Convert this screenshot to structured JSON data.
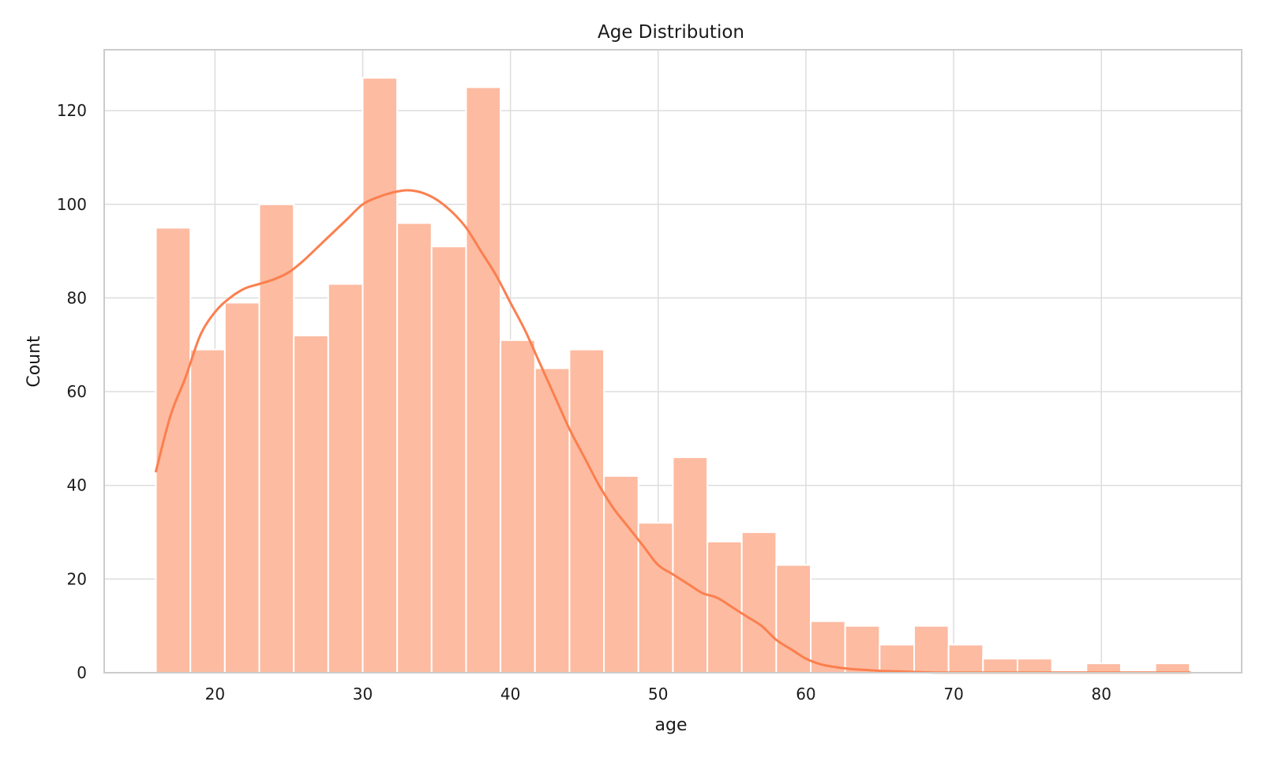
{
  "chart_data": {
    "type": "bar",
    "title": "Age Distribution",
    "xlabel": "age",
    "ylabel": "Count",
    "xlim": [
      12.5,
      89.5
    ],
    "ylim": [
      0,
      133
    ],
    "bin_start": 16,
    "bin_width": 2.333,
    "values": [
      95,
      69,
      79,
      100,
      72,
      83,
      127,
      96,
      91,
      125,
      71,
      65,
      69,
      42,
      32,
      46,
      28,
      30,
      23,
      11,
      10,
      6,
      10,
      6,
      3,
      3,
      0,
      2,
      0,
      2
    ],
    "kde": {
      "name": "kde",
      "x": [
        16,
        17,
        18,
        19,
        20,
        21,
        22,
        23,
        24,
        25,
        26,
        27,
        28,
        29,
        30,
        31,
        32,
        33,
        34,
        35,
        36,
        37,
        38,
        39,
        40,
        41,
        42,
        43,
        44,
        45,
        46,
        47,
        48,
        49,
        50,
        51,
        52,
        53,
        54,
        55,
        56,
        57,
        58,
        59,
        60,
        61,
        62,
        63,
        64,
        65,
        66,
        67,
        68,
        69,
        70,
        71,
        72,
        73,
        74,
        75,
        76,
        77,
        78,
        79,
        80,
        82,
        84,
        86
      ],
      "y": [
        43,
        55,
        63,
        72,
        77,
        80,
        82,
        83,
        84,
        85.5,
        88,
        91,
        94,
        97,
        100,
        101.5,
        102.5,
        103,
        102.5,
        101,
        98.5,
        95,
        90,
        85,
        79,
        73,
        66,
        59,
        52,
        46,
        40,
        35,
        31,
        27,
        23,
        21,
        19,
        17,
        16,
        14,
        12,
        10,
        7,
        5,
        3,
        1.8,
        1.2,
        0.8,
        0.6,
        0.4,
        0.3,
        0.2,
        0.1,
        0.05,
        0.05,
        0.05,
        0.05,
        0.05,
        0.05,
        0.05,
        0.05,
        0.05,
        0.05,
        0.05,
        0.05,
        0.05,
        0.05,
        0.05
      ]
    },
    "x_ticks": [
      20,
      30,
      40,
      50,
      60,
      70,
      80
    ],
    "y_ticks": [
      0,
      20,
      40,
      60,
      80,
      100,
      120
    ],
    "grid": true,
    "colors": {
      "bar_fill": "#fdbba1",
      "bar_stroke": "#ffffff",
      "kde_line": "#fb7f4e",
      "grid": "#dddddd",
      "spine": "#cccccc",
      "text": "#1a1a1a"
    }
  }
}
